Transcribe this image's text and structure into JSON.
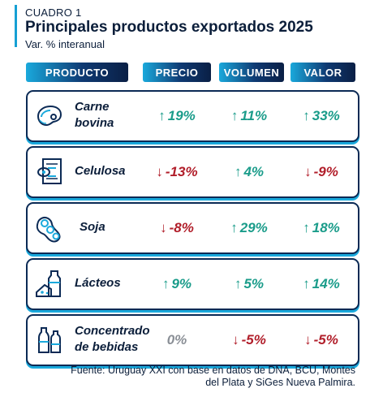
{
  "header": {
    "kicker": "CUADRO 1",
    "title": "Principales productos exportados 2025",
    "subtitle": "Var. % interanual"
  },
  "columns": {
    "producto": "PRODUCTO",
    "precio": "PRECIO",
    "volumen": "VOLUMEN",
    "valor": "VALOR"
  },
  "colors": {
    "positive": "#1a9c8a",
    "negative": "#b11e2a",
    "neutral": "#8a8f96",
    "accent": "#1aa9dc",
    "navy": "#0b2a55"
  },
  "chart_data": {
    "type": "table",
    "title": "Principales productos exportados 2025",
    "subtitle": "Var. % interanual",
    "columns": [
      "PRODUCTO",
      "PRECIO",
      "VOLUMEN",
      "VALOR"
    ],
    "rows": [
      {
        "product_line1": "Carne",
        "product_line2": "bovina",
        "icon": "steak-icon",
        "precio": "19%",
        "precio_dir": "up",
        "volumen": "11%",
        "volumen_dir": "up",
        "valor": "33%",
        "valor_dir": "up"
      },
      {
        "product_line1": "Celulosa",
        "product_line2": "",
        "icon": "paper-roll-icon",
        "precio": "-13%",
        "precio_dir": "down",
        "volumen": "4%",
        "volumen_dir": "up",
        "valor": "-9%",
        "valor_dir": "down"
      },
      {
        "product_line1": "Soja",
        "product_line2": "",
        "icon": "soybean-icon",
        "precio": "-8%",
        "precio_dir": "down",
        "volumen": "29%",
        "volumen_dir": "up",
        "valor": "18%",
        "valor_dir": "up"
      },
      {
        "product_line1": "Lácteos",
        "product_line2": "",
        "icon": "dairy-icon",
        "precio": "9%",
        "precio_dir": "up",
        "volumen": "5%",
        "volumen_dir": "up",
        "valor": "14%",
        "valor_dir": "up"
      },
      {
        "product_line1": "Concentrado",
        "product_line2": "de bebidas",
        "icon": "bottles-icon",
        "precio": "0%",
        "precio_dir": "neutral",
        "volumen": "-5%",
        "volumen_dir": "down",
        "valor": "-5%",
        "valor_dir": "down"
      }
    ]
  },
  "footer": {
    "line1": "Fuente: Uruguay XXI con base en datos de DNA, BCU, Montes",
    "line2": "del Plata y SiGes Nueva Palmira."
  }
}
